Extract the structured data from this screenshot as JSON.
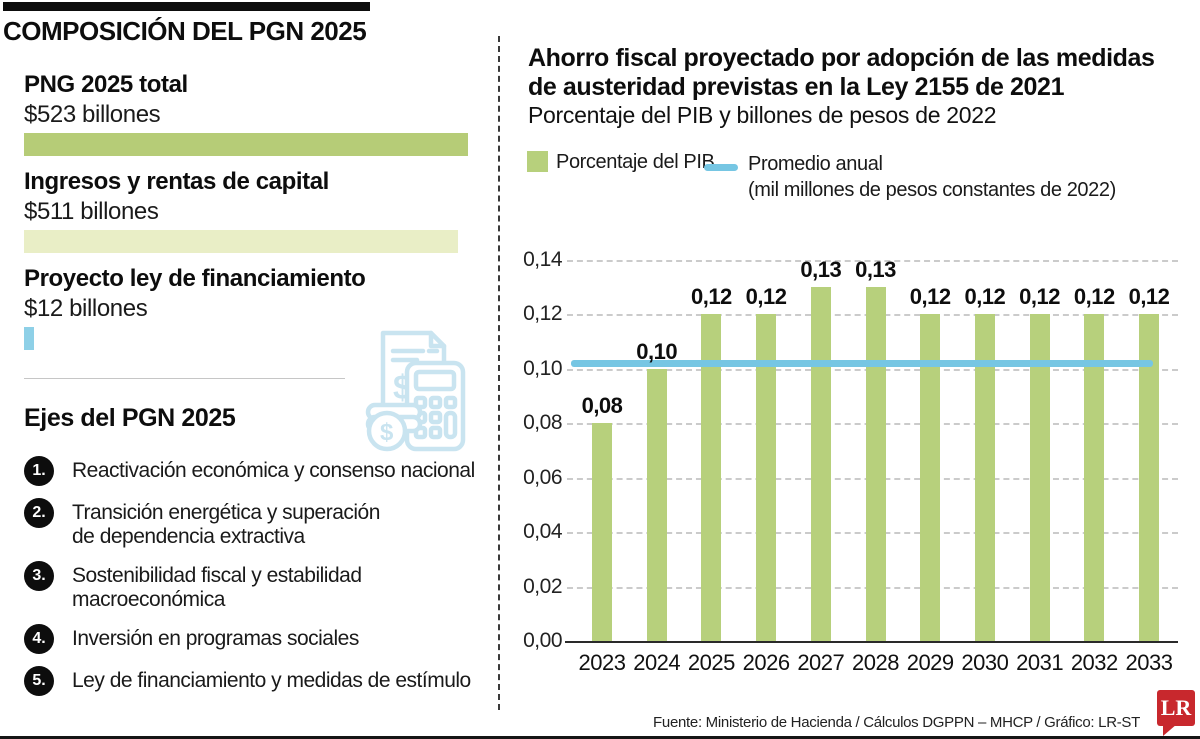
{
  "left_panel": {
    "title": "COMPOSICIÓN DEL PGN 2025",
    "budget_items": [
      {
        "label": "PNG 2025 total",
        "value_text": "$523 billones",
        "amount": 523,
        "color": "#b6cc77"
      },
      {
        "label": "Ingresos y rentas de capital",
        "value_text": "$511 billones",
        "amount": 511,
        "color": "#e9eec6"
      },
      {
        "label": "Proyecto ley de financiamiento",
        "value_text": "$12 billones",
        "amount": 12,
        "color": "#8ed0e7"
      }
    ],
    "ejes_title": "Ejes del PGN 2025",
    "ejes": [
      {
        "num": "1.",
        "lines": [
          "Reactivación económica y consenso nacional"
        ]
      },
      {
        "num": "2.",
        "lines": [
          "Transición energética y superación",
          "de dependencia extractiva"
        ]
      },
      {
        "num": "3.",
        "lines": [
          "Sostenibilidad fiscal y estabilidad macroeconómica"
        ]
      },
      {
        "num": "4.",
        "lines": [
          "Inversión en programas sociales"
        ]
      },
      {
        "num": "5.",
        "lines": [
          "Ley de financiamiento y medidas de estímulo"
        ]
      }
    ],
    "icon": "calculator-receipt-coins",
    "icon_color": "#c9e4f0"
  },
  "right_panel": {
    "title_line1": "Ahorro fiscal proyectado por adopción de las medidas",
    "title_line2": "de austeridad previstas en la Ley 2155 de 2021",
    "subtitle": "Porcentaje del PIB y billones de pesos de 2022",
    "legend": {
      "bar_label": "Porcentaje del PIB",
      "line_label": "Promedio anual",
      "line_sublabel": "(mil millones de pesos constantes de 2022)"
    },
    "footer": "Fuente: Ministerio de Hacienda / Cálculos DGPPN – MHCP / Gráfico: LR-ST",
    "logo_text": "LR",
    "logo_color": "#c8282d"
  },
  "chart_data": {
    "type": "bar",
    "title": "Ahorro fiscal proyectado por adopción de las medidas de austeridad previstas en la Ley 2155 de 2021",
    "subtitle": "Porcentaje del PIB y billones de pesos de 2022",
    "categories": [
      "2023",
      "2024",
      "2025",
      "2026",
      "2027",
      "2028",
      "2029",
      "2030",
      "2031",
      "2032",
      "2033"
    ],
    "values": [
      0.08,
      0.1,
      0.12,
      0.12,
      0.13,
      0.13,
      0.12,
      0.12,
      0.12,
      0.12,
      0.12
    ],
    "bar_labels": [
      "0,08",
      "0,10",
      "0,12",
      "0,12",
      "0,13",
      "0,13",
      "0,12",
      "0,12",
      "0,12",
      "0,12",
      "0,12"
    ],
    "average_line_value": 0.102,
    "xlabel": "",
    "ylabel": "",
    "ylim": [
      0,
      0.14
    ],
    "ytick_step": 0.02,
    "ytick_labels": [
      "0,00",
      "0,02",
      "0,04",
      "0,06",
      "0,08",
      "0,10",
      "0,12",
      "0,14"
    ],
    "grid": "horizontal-dashed",
    "legend_position": "top-left",
    "legend_entries": [
      "Porcentaje del PIB",
      "Promedio anual (mil millones de pesos constantes de 2022)"
    ],
    "colors": {
      "bar": "#b7d07c",
      "line": "#76c6e3",
      "grid": "#cbcbcb",
      "axis": "#2a2a2a"
    }
  }
}
